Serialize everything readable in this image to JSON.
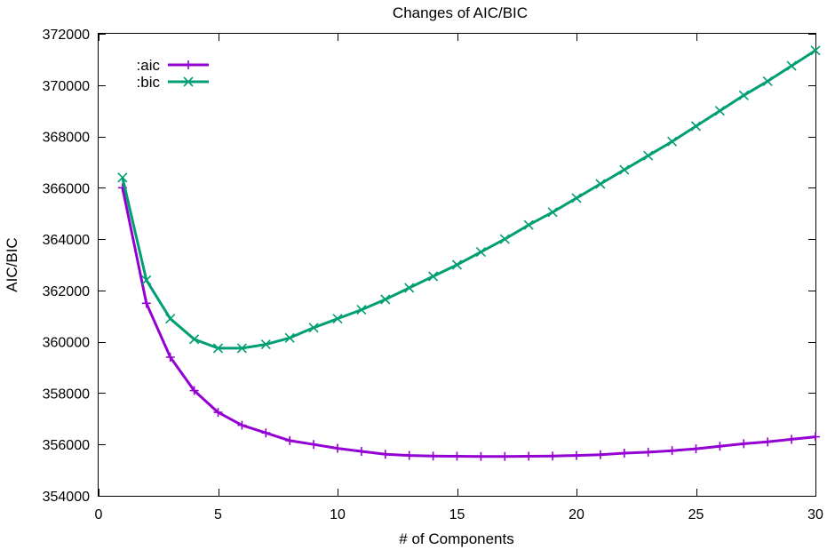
{
  "chart_data": {
    "type": "line",
    "title": "Changes of AIC/BIC",
    "xlabel": "# of Components",
    "ylabel": "AIC/BIC",
    "xlim": [
      0,
      30
    ],
    "ylim": [
      354000,
      372000
    ],
    "xticks": [
      0,
      5,
      10,
      15,
      20,
      25,
      30
    ],
    "yticks": [
      354000,
      356000,
      358000,
      360000,
      362000,
      364000,
      366000,
      368000,
      370000,
      372000
    ],
    "grid": false,
    "legend_position": "top-left",
    "x": [
      1,
      2,
      3,
      4,
      5,
      6,
      7,
      8,
      9,
      10,
      11,
      12,
      13,
      14,
      15,
      16,
      17,
      18,
      19,
      20,
      21,
      22,
      23,
      24,
      25,
      26,
      27,
      28,
      29,
      30
    ],
    "series": [
      {
        "name": ":aic",
        "color": "#9400d3",
        "marker": "plus",
        "values": [
          366000,
          361500,
          359400,
          358100,
          357250,
          356750,
          356450,
          356150,
          356000,
          355850,
          355730,
          355620,
          355570,
          355550,
          355540,
          355530,
          355530,
          355540,
          355550,
          355570,
          355600,
          355660,
          355700,
          355760,
          355830,
          355930,
          356030,
          356100,
          356200,
          356300
        ]
      },
      {
        "name": ":bic",
        "color": "#009e73",
        "marker": "cross",
        "values": [
          366400,
          362400,
          360900,
          360100,
          359750,
          359750,
          359900,
          360150,
          360550,
          360900,
          361250,
          361650,
          362100,
          362550,
          363000,
          363500,
          364000,
          364550,
          365050,
          365600,
          366150,
          366700,
          367250,
          367800,
          368400,
          369000,
          369600,
          370150,
          370750,
          371350
        ]
      }
    ]
  }
}
